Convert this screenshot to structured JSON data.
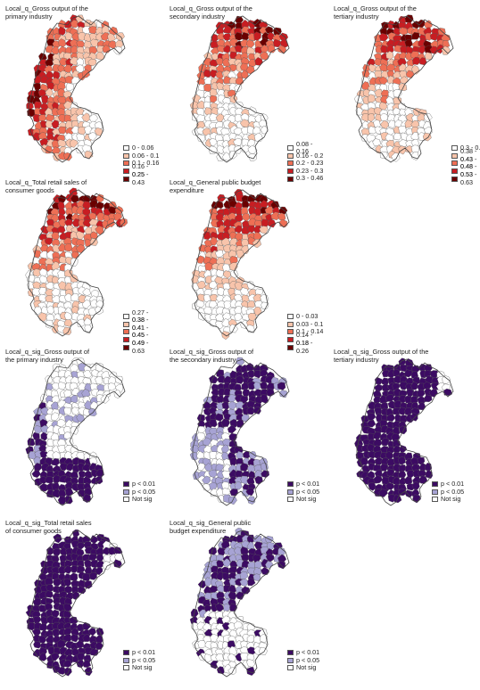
{
  "palettes": {
    "q": [
      "#ffffff",
      "#f8c4ab",
      "#ee6f55",
      "#c81d22",
      "#6a0000"
    ],
    "sig": [
      "#3c0b63",
      "#a7a3d4",
      "#ffffff"
    ]
  },
  "panels": [
    {
      "id": "q-primary",
      "title": "Local_q_Gross output of the\nprimary industry",
      "palette": "q",
      "seed": 11,
      "bias": 0,
      "legend": [
        "0 - 0.06",
        "0.06 - 0.1",
        "0.1 - 0.16",
        "0.16 - 0.25",
        "0.25 - 0.43"
      ]
    },
    {
      "id": "q-secondary",
      "title": "Local_q_Gross output of the\nsecondary industry",
      "palette": "q",
      "seed": 23,
      "bias": 1,
      "legend": [
        "0.08 - 0.16",
        "0.16 - 0.2",
        "0.2 - 0.23",
        "0.23 - 0.3",
        "0.3 - 0.46"
      ]
    },
    {
      "id": "q-tertiary",
      "title": "Local_q_Gross output of the\ntertiary industry",
      "palette": "q",
      "seed": 37,
      "bias": 1,
      "legend": [
        "0.3 - 0.38",
        "0.38 - 0.43",
        "0.43 - 0.48",
        "0.48 - 0.53",
        "0.53 - 0.63"
      ]
    },
    {
      "id": "q-retail",
      "title": "Local_q_Total retail sales of\nconsumer goods",
      "palette": "q",
      "seed": 41,
      "bias": 1,
      "legend": [
        "0.27 - 0.38",
        "0.38 - 0.41",
        "0.41 - 0.45",
        "0.45 - 0.49",
        "0.49 - 0.63"
      ]
    },
    {
      "id": "q-budget",
      "title": "Local_q_General public budget\nexpenditure",
      "palette": "q",
      "seed": 53,
      "bias": 1,
      "legend": [
        "0 - 0.03",
        "0.03 - 0.1",
        "0.1 - 0.14",
        "0.14 - 0.18",
        "0.18 - 0.26"
      ]
    },
    {
      "id": "sig-primary",
      "title": "Local_q_sig_Gross output of\nthe primary industry",
      "palette": "sig",
      "seed": 61,
      "mode": "primary",
      "legend": [
        "p < 0.01",
        "p < 0.05",
        "Not sig"
      ]
    },
    {
      "id": "sig-secondary",
      "title": "Local_q_sig_Gross output of\nthe secondary industry",
      "palette": "sig",
      "seed": 71,
      "mode": "secondary",
      "legend": [
        "p < 0.01",
        "p < 0.05",
        "Not sig"
      ]
    },
    {
      "id": "sig-tertiary",
      "title": "Local_q_sig_Gross output of the\ntertiary industry",
      "palette": "sig",
      "seed": 83,
      "mode": "all",
      "legend": [
        "p < 0.01",
        "p < 0.05",
        "Not sig"
      ]
    },
    {
      "id": "sig-retail",
      "title": "Local_q_sig_Total retail sales\nof consumer goods",
      "palette": "sig",
      "seed": 97,
      "mode": "all",
      "legend": [
        "p < 0.01",
        "p < 0.05",
        "Not sig"
      ]
    },
    {
      "id": "sig-budget",
      "title": "Local_q_sig_General public\nbudget expenditure",
      "palette": "sig",
      "seed": 101,
      "mode": "budget",
      "legend": [
        "p < 0.01",
        "p < 0.05",
        "Not sig"
      ]
    }
  ]
}
